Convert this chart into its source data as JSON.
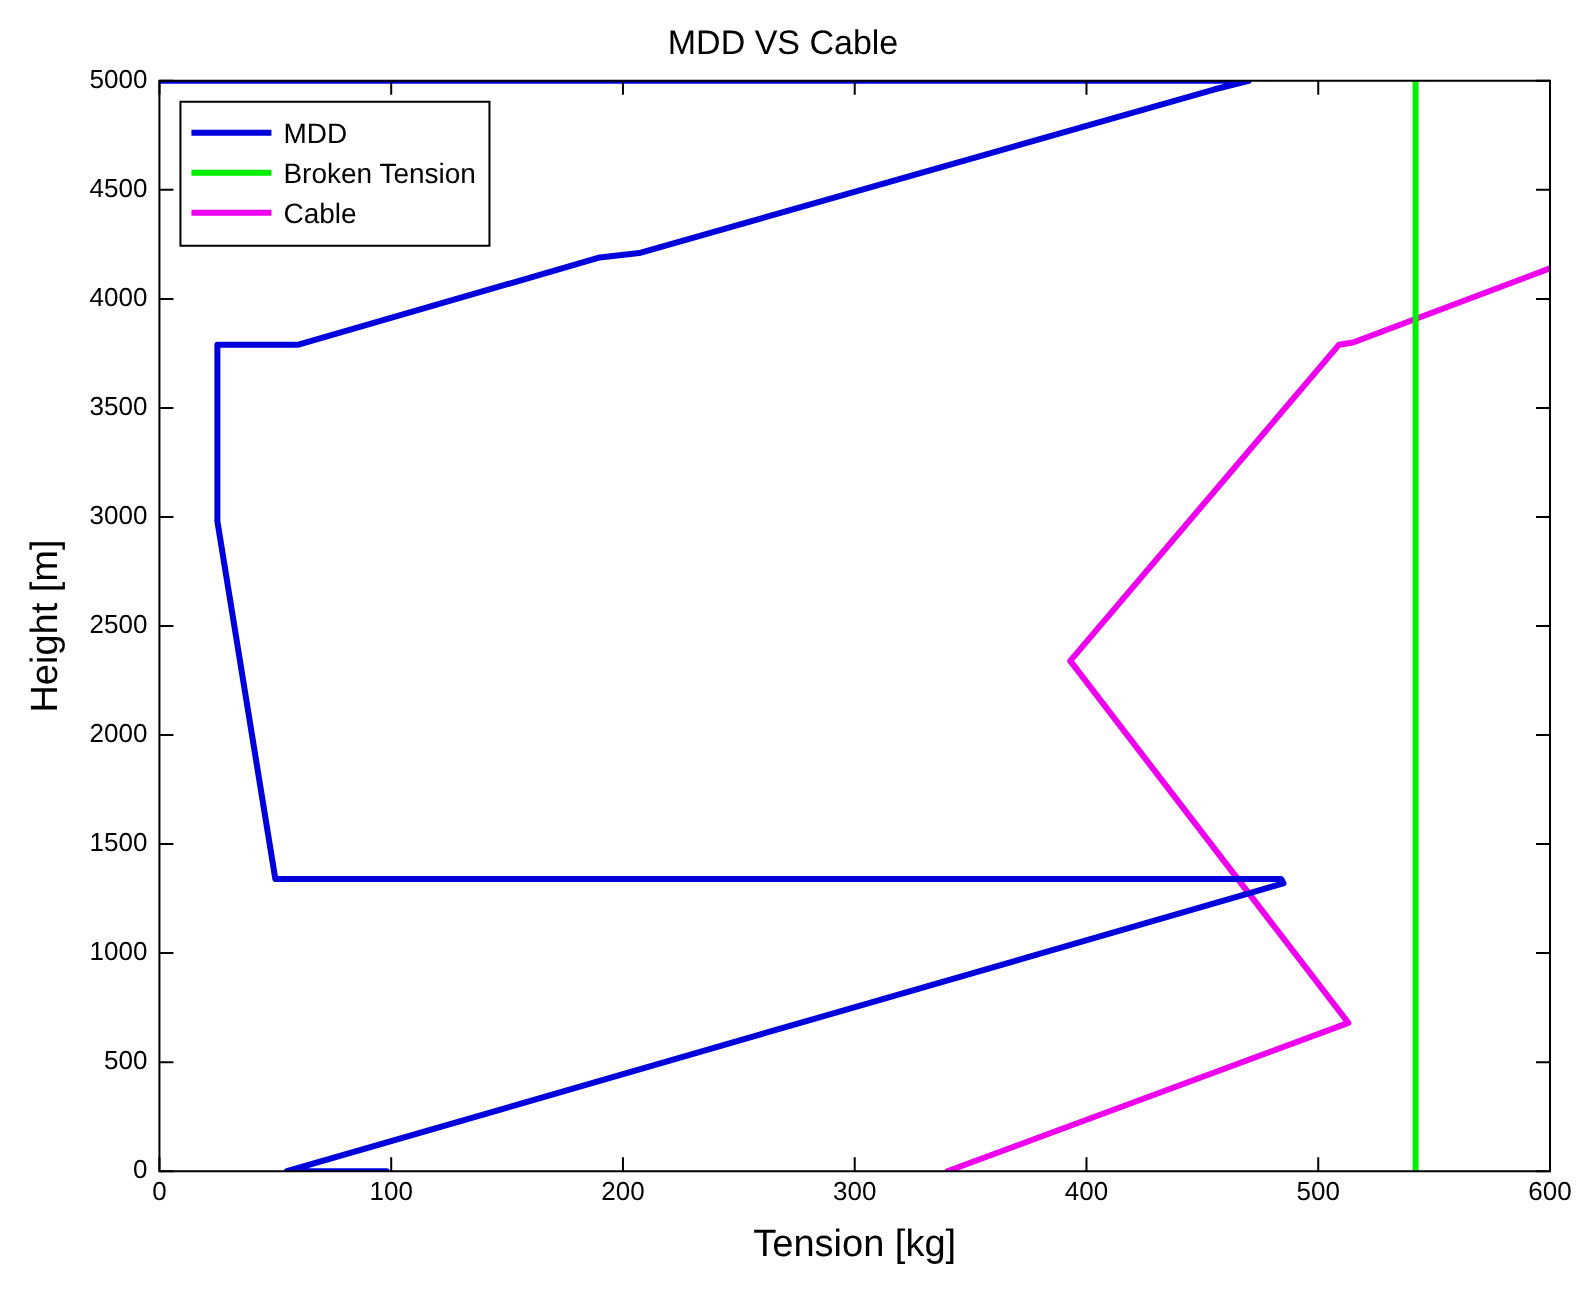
{
  "chart_data": {
    "type": "line",
    "title": "MDD VS Cable",
    "xlabel": "Tension [kg]",
    "ylabel": "Height [m]",
    "xlim": [
      0,
      600
    ],
    "xticks": [
      0,
      100,
      200,
      300,
      400,
      500,
      600
    ],
    "ylim": [
      0,
      5000
    ],
    "yticks": [
      0,
      500,
      1000,
      1500,
      2000,
      2500,
      3000,
      3500,
      4000,
      4500,
      5000
    ],
    "grid": false,
    "legend": "top left",
    "marker": "none",
    "line_style": "solid",
    "series": [
      {
        "name": "MDD",
        "color": "#0000dd",
        "x": [
          98,
          55,
          485,
          484,
          50,
          25,
          25,
          60,
          190,
          207,
          455,
          470,
          0
        ],
        "values": [
          0,
          0,
          1320,
          1340,
          1340,
          2980,
          3790,
          3790,
          4190,
          4210,
          4960,
          5000,
          5000
        ]
      },
      {
        "name": "Broken Tension",
        "color": "#00ee00",
        "x": [
          542,
          542
        ],
        "values": [
          0,
          5000
        ]
      },
      {
        "name": "Cable",
        "color": "#ee00ee",
        "x": [
          340,
          513,
          393,
          509,
          515,
          600
        ],
        "values": [
          0,
          680,
          2340,
          3790,
          3800,
          4140
        ]
      }
    ]
  }
}
